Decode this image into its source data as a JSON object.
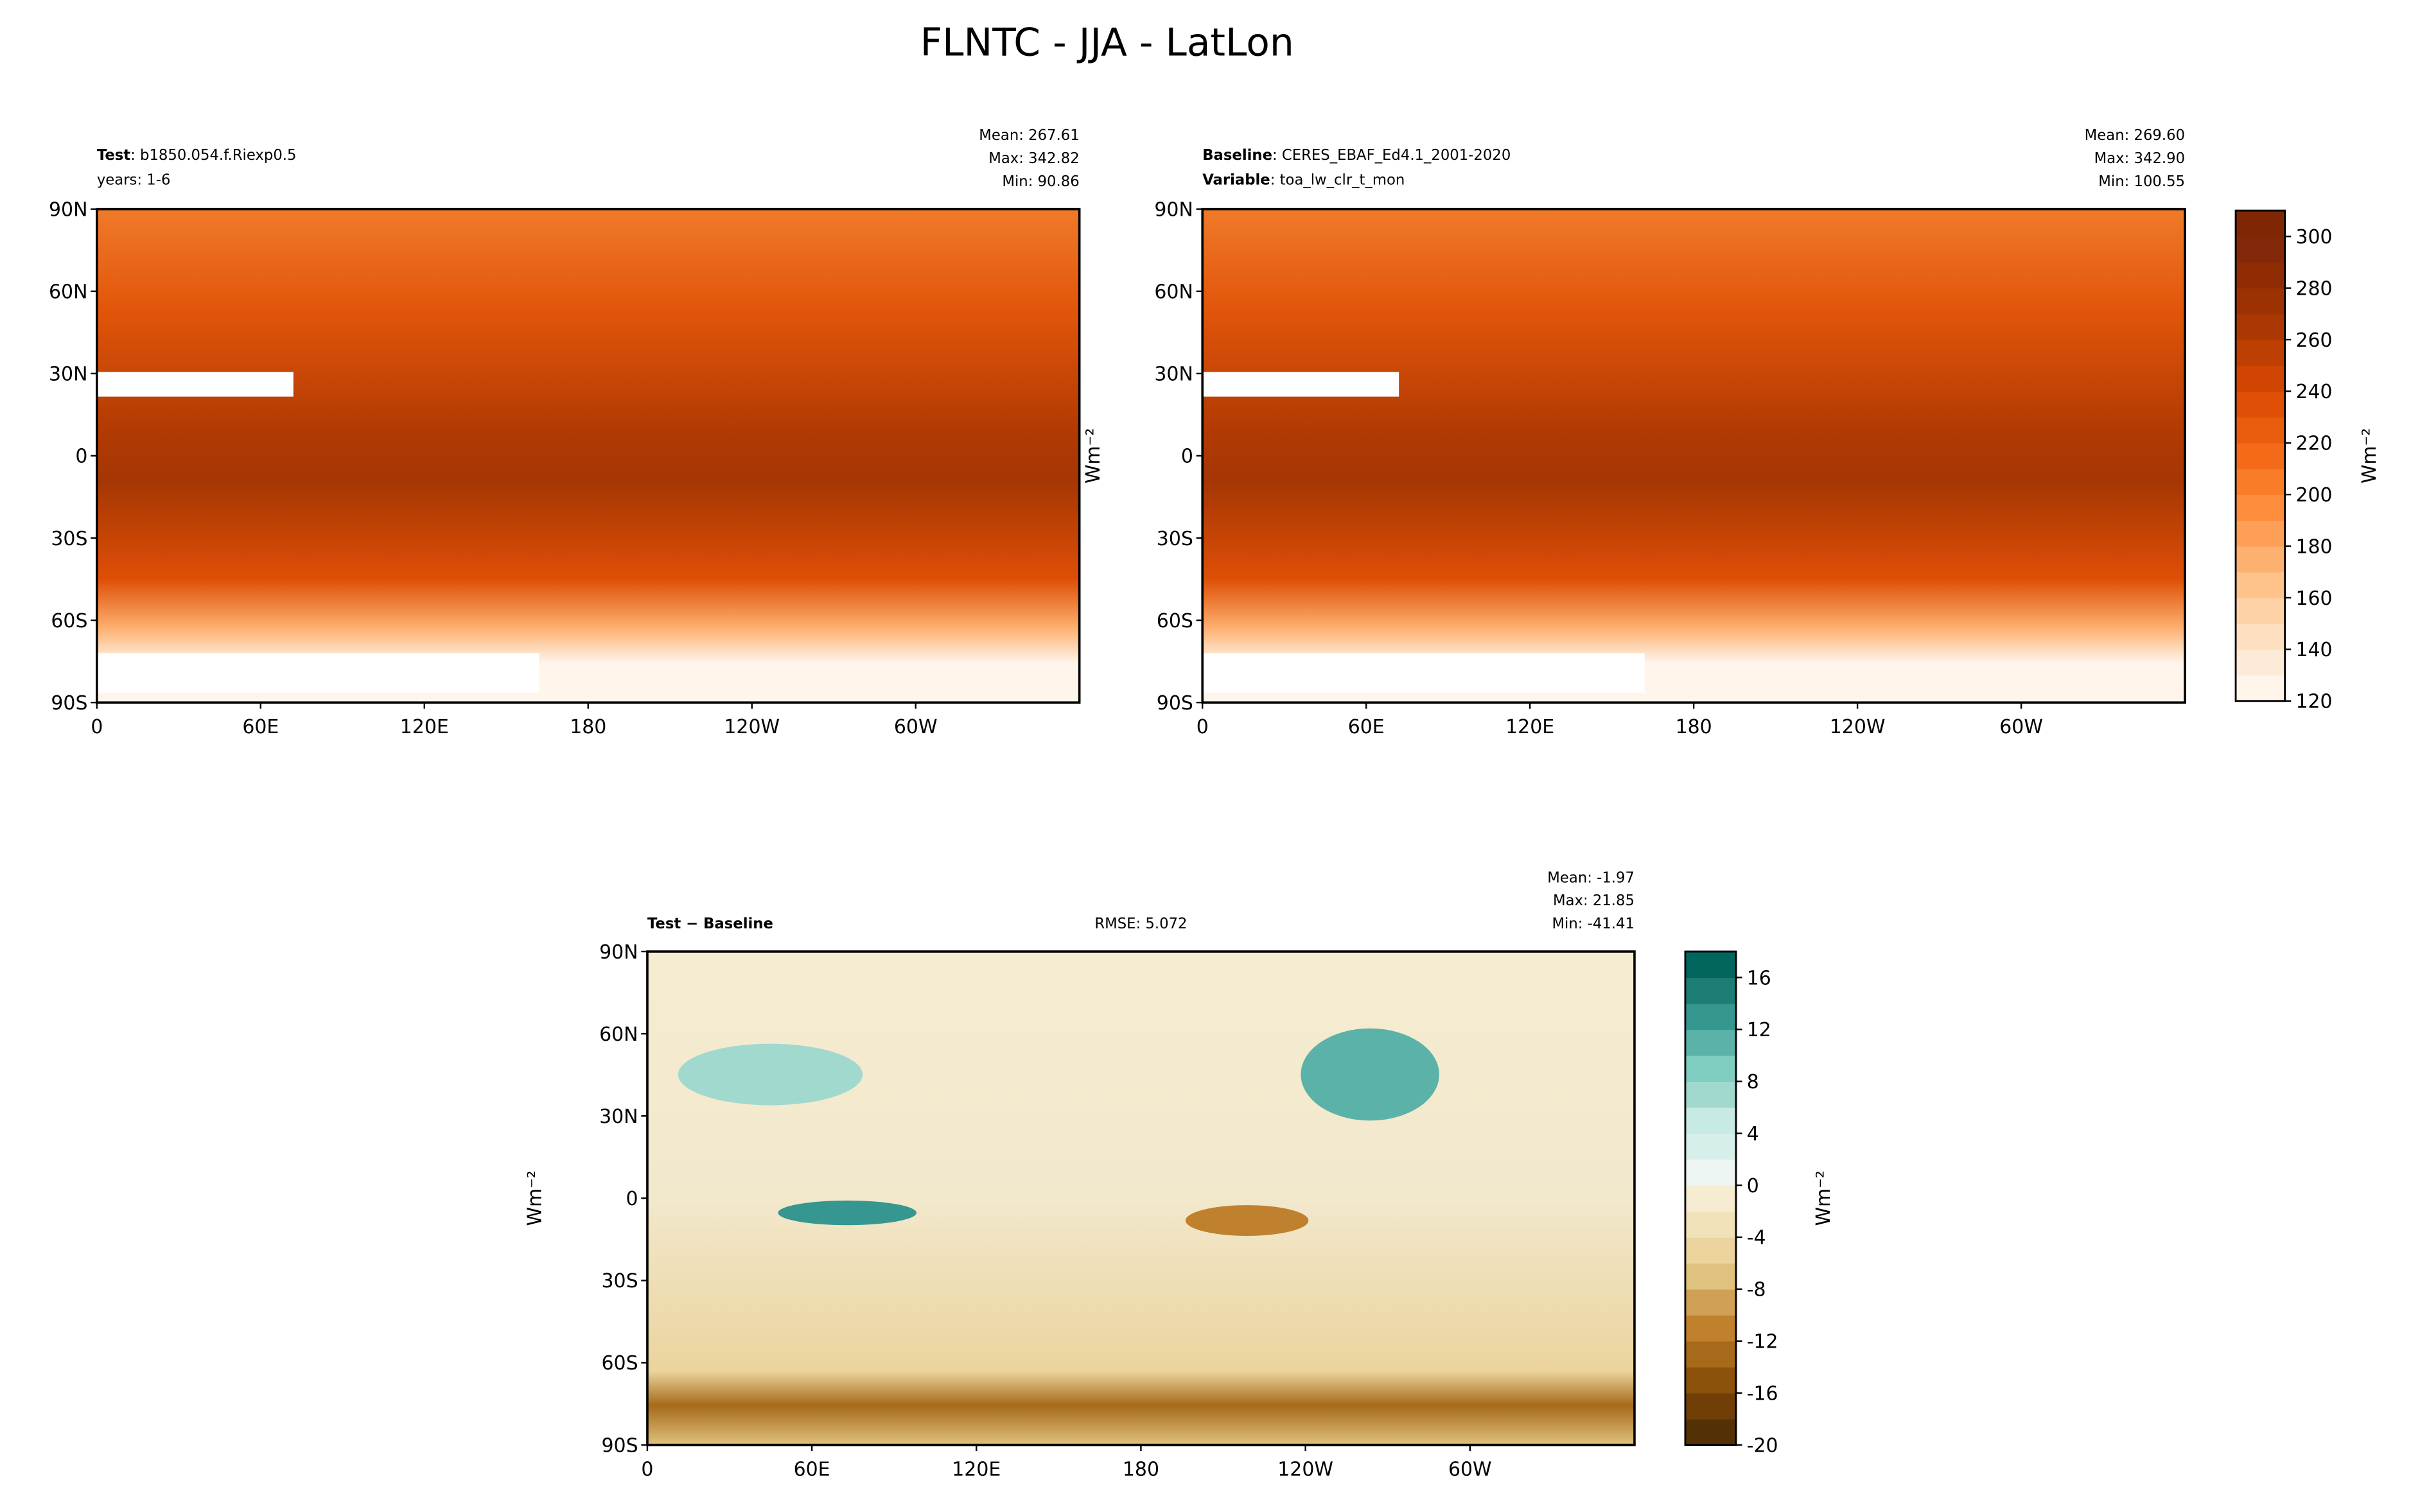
{
  "title": "FLNTC - JJA - LatLon",
  "panels": [
    {
      "lines": [
        {
          "label": "Test",
          "text": ": b1850.054.f.Riexp0.5"
        },
        {
          "text": "years: 1-6"
        }
      ],
      "stats": [
        "Mean: 267.61",
        "Max: 342.82",
        "Min: 90.86"
      ],
      "xlim": [
        0,
        360
      ],
      "ylim": [
        -90,
        90
      ],
      "xticks": [
        0,
        {
          "value": 60,
          "label": "60E"
        },
        {
          "value": 120,
          "label": "120E"
        },
        180,
        {
          "value": 240,
          "label": "120W"
        },
        {
          "value": 300,
          "label": "60W"
        }
      ],
      "yticks": [
        {
          "value": 90,
          "label": "90N"
        },
        {
          "value": 60,
          "label": "60N"
        },
        {
          "value": 30,
          "label": "30N"
        },
        0,
        {
          "value": -30,
          "label": "30S"
        },
        {
          "value": -60,
          "label": "60S"
        },
        {
          "value": -90,
          "label": "90S"
        }
      ]
    },
    {
      "lines": [
        {
          "label": "Baseline",
          "text": ": CERES_EBAF_Ed4.1_2001-2020"
        },
        {
          "label": "Variable",
          "text": ": toa_lw_clr_t_mon"
        }
      ],
      "stats": [
        "Mean: 269.60",
        "Max: 342.90",
        "Min: 100.55"
      ],
      "ylabel": "Wm⁻²",
      "xlim": [
        0,
        360
      ],
      "ylim": [
        -90,
        90
      ],
      "xticks": [
        0,
        {
          "value": 60,
          "label": "60E"
        },
        {
          "value": 120,
          "label": "120E"
        },
        180,
        {
          "value": 240,
          "label": "120W"
        },
        {
          "value": 300,
          "label": "60W"
        }
      ],
      "yticks": [
        {
          "value": 90,
          "label": "90N"
        },
        {
          "value": 60,
          "label": "60N"
        },
        {
          "value": 30,
          "label": "30N"
        },
        0,
        {
          "value": -30,
          "label": "30S"
        },
        {
          "value": -60,
          "label": "60S"
        },
        {
          "value": -90,
          "label": "90S"
        }
      ],
      "colorbar": {
        "lim": [
          120,
          310
        ],
        "ticks": [
          120,
          140,
          160,
          180,
          200,
          220,
          240,
          260,
          280,
          300
        ],
        "label": "Wm⁻²",
        "colors": [
          "#fff5eb",
          "#feebd7",
          "#fee0c1",
          "#fdd2a6",
          "#fdc38a",
          "#fdb171",
          "#fd9f57",
          "#fd8d3c",
          "#f97c29",
          "#f36b19",
          "#e95c0d",
          "#df4f06",
          "#d04501",
          "#bd3f02",
          "#ab3803",
          "#9c3203",
          "#8f2c04",
          "#83280a",
          "#7f2704"
        ]
      }
    },
    {
      "lines": [
        {
          "label": "Test − Baseline"
        }
      ],
      "rmse": "RMSE: 5.072",
      "stats": [
        "Mean: -1.97",
        "Max: 21.85",
        "Min: -41.41"
      ],
      "ylabel": "Wm⁻²",
      "xlim": [
        0,
        360
      ],
      "ylim": [
        -90,
        90
      ],
      "xticks": [
        0,
        {
          "value": 60,
          "label": "60E"
        },
        {
          "value": 120,
          "label": "120E"
        },
        180,
        {
          "value": 240,
          "label": "120W"
        },
        {
          "value": 300,
          "label": "60W"
        }
      ],
      "yticks": [
        {
          "value": 90,
          "label": "90N"
        },
        {
          "value": 60,
          "label": "60N"
        },
        {
          "value": 30,
          "label": "30N"
        },
        0,
        {
          "value": -30,
          "label": "30S"
        },
        {
          "value": -60,
          "label": "60S"
        },
        {
          "value": -90,
          "label": "90S"
        }
      ],
      "colorbar": {
        "lim": [
          -20,
          18
        ],
        "ticks": [
          -20,
          -16,
          -12,
          -8,
          -4,
          0,
          4,
          8,
          12,
          16
        ],
        "label": "Wm⁻²",
        "colors": [
          "#543005",
          "#6f3f07",
          "#8c510a",
          "#a66a1a",
          "#bf812d",
          "#cfa055",
          "#dfc27d",
          "#ebd49d",
          "#f2e2b9",
          "#f6ecd2",
          "#eef6f4",
          "#d7efeb",
          "#c7eae5",
          "#a1d9cf",
          "#80cdc1",
          "#5ab2a8",
          "#35978f",
          "#1d7d74",
          "#01665e"
        ]
      }
    }
  ]
}
